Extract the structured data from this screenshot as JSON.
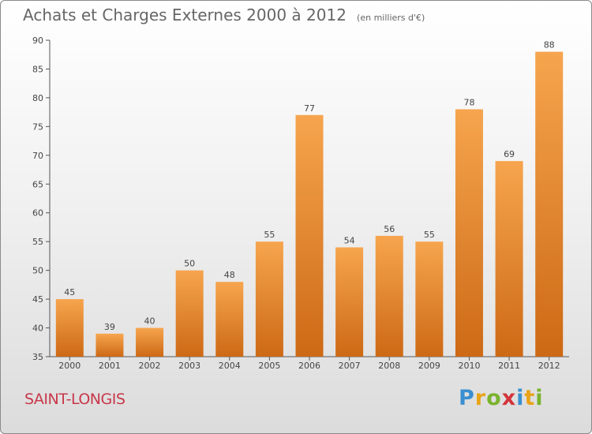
{
  "header": {
    "title": "Achats et Charges Externes 2000 à 2012",
    "unit": "(en milliers d'€)"
  },
  "footer": {
    "city": "SAINT-LONGIS",
    "logo_text": "Proxiti"
  },
  "colors": {
    "bar_top": "#f6a54e",
    "bar_bottom": "#cd6915",
    "city_text": "#c8384a"
  },
  "chart_data": {
    "type": "bar",
    "title": "Achats et Charges Externes 2000 à 2012",
    "subtitle": "(en milliers d'€)",
    "xlabel": "",
    "ylabel": "",
    "categories": [
      "2000",
      "2001",
      "2002",
      "2003",
      "2004",
      "2005",
      "2006",
      "2007",
      "2008",
      "2009",
      "2010",
      "2011",
      "2012"
    ],
    "values": [
      45,
      39,
      40,
      50,
      48,
      55,
      77,
      54,
      56,
      55,
      78,
      69,
      88
    ],
    "ylim": [
      35,
      90
    ],
    "yticks": [
      35,
      40,
      45,
      50,
      55,
      60,
      65,
      70,
      75,
      80,
      85,
      90
    ],
    "grid": false,
    "legend": "none"
  }
}
